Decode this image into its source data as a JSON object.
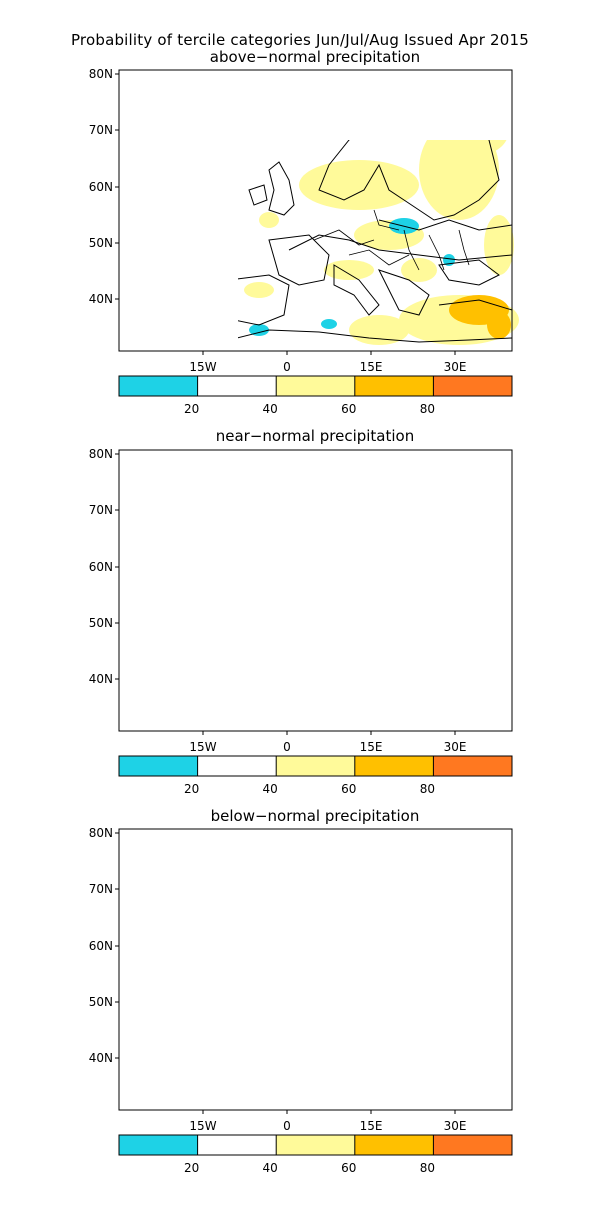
{
  "figure": {
    "title_line1": "Probability of tercile categories Jun/Jul/Aug Issued Apr 2015"
  },
  "axes": {
    "lat_labels": [
      "80N",
      "70N",
      "60N",
      "50N",
      "40N"
    ],
    "lon_labels": [
      "15W",
      "0",
      "15E",
      "30E"
    ]
  },
  "colorbar": {
    "colors": [
      "#1ed2e6",
      "#ffffff",
      "#fffa9a",
      "#ffc000",
      "#ff7820"
    ],
    "tick_labels": [
      "20",
      "40",
      "60",
      "80"
    ]
  },
  "panels": [
    {
      "id": "above",
      "title": "above−normal precipitation"
    },
    {
      "id": "near",
      "title": "near−normal precipitation"
    },
    {
      "id": "below",
      "title": "below−normal precipitation"
    }
  ]
}
